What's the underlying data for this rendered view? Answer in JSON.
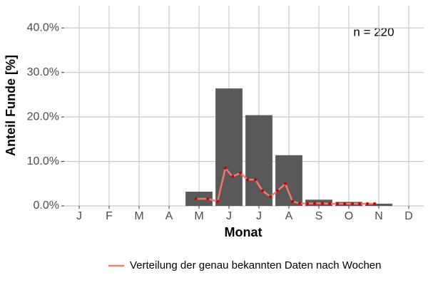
{
  "chart_data": {
    "type": "bar",
    "annotation": "n = 220",
    "x_label": "Monat",
    "y_label": "Anteil Funde [%]",
    "categories": [
      "J",
      "F",
      "M",
      "A",
      "M",
      "J",
      "J",
      "A",
      "S",
      "O",
      "N",
      "D"
    ],
    "values": [
      null,
      null,
      null,
      null,
      3.2,
      26.4,
      20.4,
      11.4,
      1.4,
      0.9,
      0.5,
      null
    ],
    "color": "#595959",
    "xlim": [
      0.5,
      12.5
    ],
    "ylim": [
      0,
      45
    ],
    "yticks": [
      {
        "value": 0,
        "label": "0.0%"
      },
      {
        "value": 10,
        "label": "10.0%"
      },
      {
        "value": 20,
        "label": "20.0%"
      },
      {
        "value": 30,
        "label": "30.0%"
      },
      {
        "value": 40,
        "label": "40.0%"
      }
    ],
    "grid": true,
    "line": {
      "name": "Verteilung der genau bekannten Daten nach Wochen",
      "color": "#f07a6e",
      "point_color": "#cc0000",
      "x": [
        4.9,
        5.29,
        5.62,
        5.88,
        6.12,
        6.38,
        6.62,
        6.88,
        7.12,
        7.38,
        7.62,
        7.88,
        8.12,
        8.36,
        8.62,
        8.86,
        9.12,
        9.36,
        9.62,
        9.86,
        10.12,
        10.36,
        10.62,
        10.86
      ],
      "values": [
        1.6,
        1.6,
        1.0,
        8.5,
        6.6,
        7.4,
        5.9,
        5.9,
        3.4,
        2.1,
        3.4,
        5.0,
        1.0,
        0.6,
        0.5,
        0.6,
        0.6,
        0.5,
        0.5,
        0.5,
        0.5,
        0.5,
        0.5,
        0.5
      ]
    },
    "legend": "bottom"
  }
}
